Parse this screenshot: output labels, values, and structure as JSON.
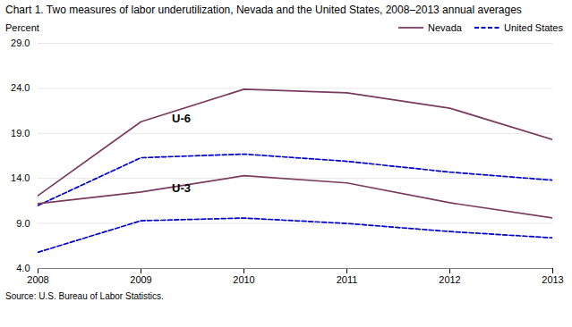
{
  "chart_data": {
    "type": "line",
    "title": "Chart 1. Two measures of labor underutilization, Nevada and the United States, 2008–2013  annual averages",
    "y_label": "Percent",
    "caption": "Source: U.S. Bureau of Labor Statistics.",
    "x": [
      2008,
      2009,
      2010,
      2011,
      2012,
      2013
    ],
    "series": [
      {
        "name": "Nevada",
        "color": "#7B3B5E",
        "line_style": "solid",
        "values": [
          12.1,
          20.3,
          23.9,
          23.5,
          21.8,
          18.3
        ]
      },
      {
        "name": "United States",
        "color": "#0000CC",
        "line_style": "dashed",
        "values": [
          11.0,
          16.3,
          16.7,
          15.9,
          14.7,
          13.8
        ]
      },
      {
        "name": "Nevada",
        "color": "#7B3B5E",
        "line_style": "solid",
        "values": [
          11.2,
          12.5,
          14.3,
          13.5,
          11.3,
          9.6
        ]
      },
      {
        "name": "United States",
        "color": "#0000CC",
        "line_style": "dashed",
        "values": [
          5.8,
          9.3,
          9.6,
          9.0,
          8.1,
          7.4
        ]
      }
    ],
    "annotations": [
      {
        "text": "U-6",
        "x": 2009.3,
        "y": 20.2
      },
      {
        "text": "U-3",
        "x": 2009.3,
        "y": 12.5
      }
    ],
    "xlim": [
      2008,
      2013
    ],
    "xticks": [
      2008,
      2009,
      2010,
      2011,
      2012,
      2013
    ],
    "ylim": [
      4.0,
      29.0
    ],
    "yticks": [
      {
        "value": 4,
        "label": "4.0"
      },
      {
        "value": 9,
        "label": "9.0"
      },
      {
        "value": 14,
        "label": "14.0"
      },
      {
        "value": 19,
        "label": "19.0"
      },
      {
        "value": 24,
        "label": "24.0"
      },
      {
        "value": 29,
        "label": "29.0"
      }
    ],
    "grid": true,
    "legend": "upper right"
  }
}
